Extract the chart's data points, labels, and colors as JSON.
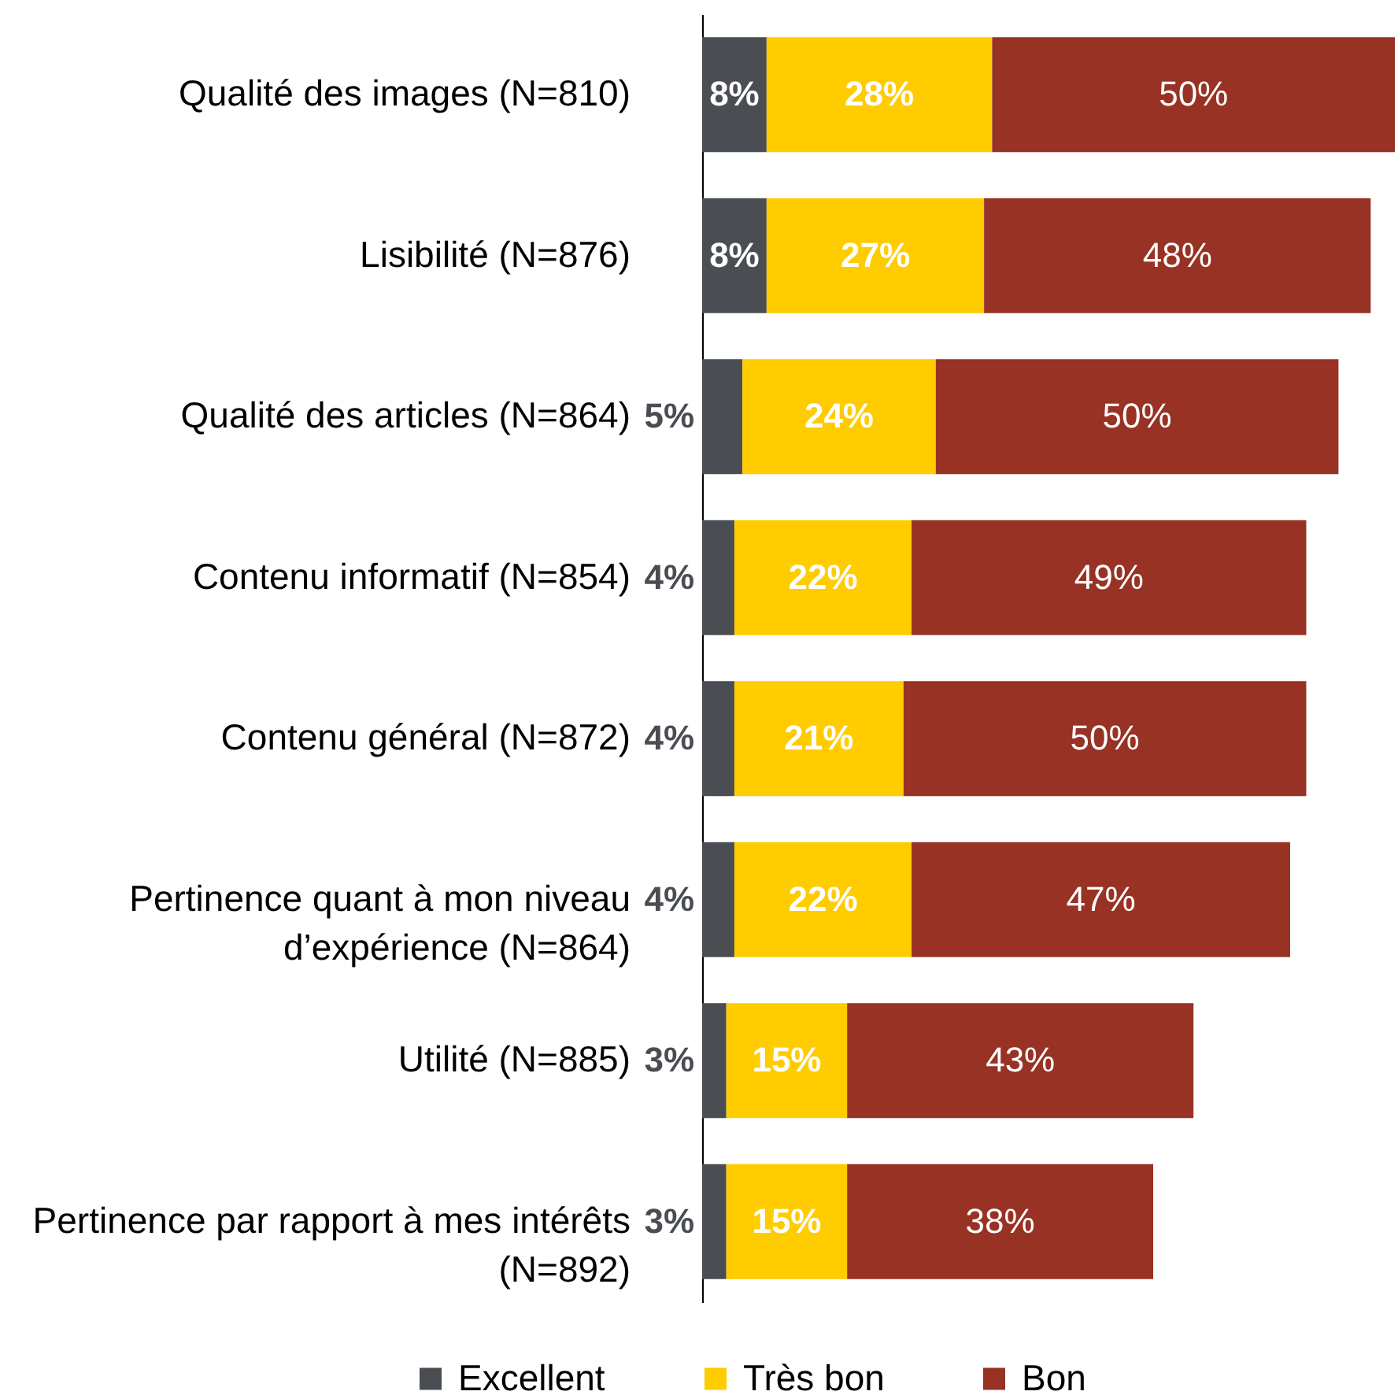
{
  "chart_data": {
    "type": "bar",
    "orientation": "horizontal",
    "stacked": true,
    "categories": [
      "Qualité des images (N=810)",
      "Lisibilité (N=876)",
      "Qualité des articles (N=864)",
      "Contenu informatif (N=854)",
      "Contenu général (N=872)",
      "Pertinence quant à mon niveau\nd’expérience (N=864)",
      "Utilité (N=885)",
      "Pertinence par rapport à mes intérêts\n(N=892)"
    ],
    "series": [
      {
        "name": "Excellent",
        "color": "#4a4d52",
        "values": [
          8,
          8,
          5,
          4,
          4,
          4,
          3,
          3
        ],
        "value_labels": [
          "8%",
          "8%",
          "5%",
          "4%",
          "4%",
          "4%",
          "3%",
          "3%"
        ]
      },
      {
        "name": "Très bon",
        "color": "#ffcc00",
        "values": [
          28,
          27,
          24,
          22,
          21,
          22,
          15,
          15
        ],
        "value_labels": [
          "28%",
          "27%",
          "24%",
          "22%",
          "21%",
          "22%",
          "15%",
          "15%"
        ]
      },
      {
        "name": "Bon",
        "color": "#983224",
        "values": [
          50,
          48,
          50,
          49,
          50,
          47,
          43,
          38
        ],
        "value_labels": [
          "50%",
          "48%",
          "50%",
          "49%",
          "50%",
          "47%",
          "43%",
          "38%"
        ]
      }
    ],
    "legend": "bottom",
    "tick_labels": "y"
  }
}
